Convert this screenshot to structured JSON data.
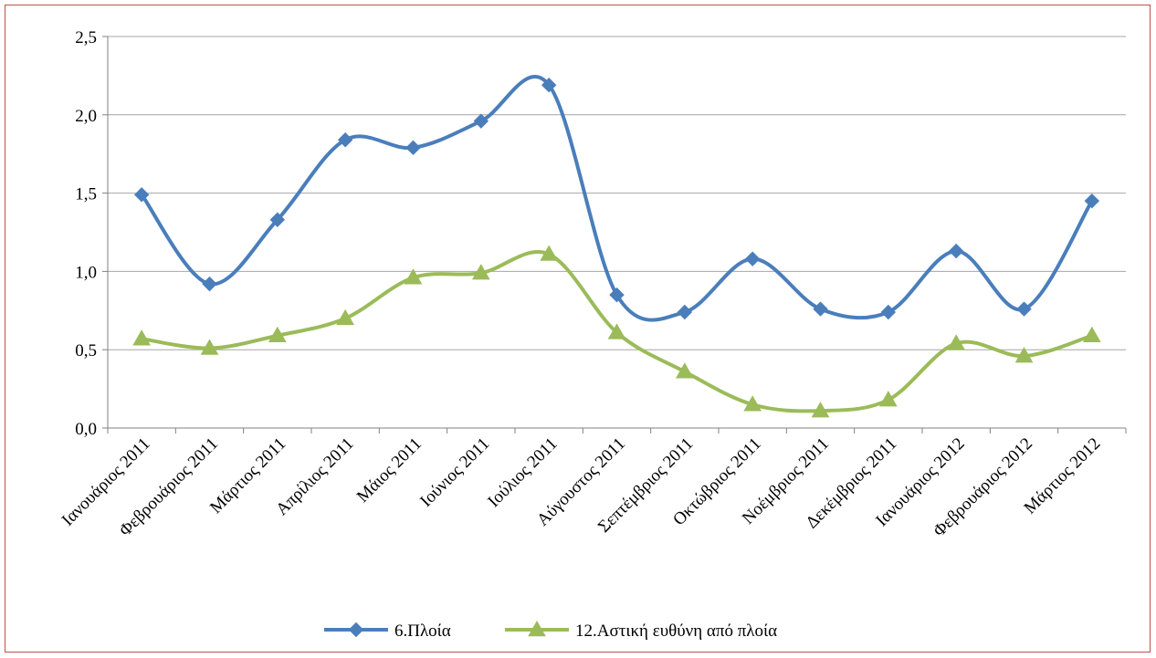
{
  "chart_data": {
    "type": "line",
    "title": "",
    "xlabel": "",
    "ylabel": "",
    "categories": [
      "Ιανουάριος 2011",
      "Φεβρουάριος 2011",
      "Μάρτιος 2011",
      "Απρίλιος 2011",
      "Μάιος 2011",
      "Ιούνιος 2011",
      "Ιούλιος 2011",
      "Αύγουστος 2011",
      "Σεπτέμβριος 2011",
      "Οκτώβριος 2011",
      "Νοέμβριος 2011",
      "Δεκέμβριος 2011",
      "Ιανουάριος 2012",
      "Φεβρουάριος 2012",
      "Μάρτιος 2012"
    ],
    "ylim": [
      0,
      2.5
    ],
    "yticks": [
      "0,0",
      "0,5",
      "1,0",
      "1,5",
      "2,0",
      "2,5"
    ],
    "grid": "horizontal",
    "legend_position": "bottom",
    "smooth": true,
    "series": [
      {
        "name": "6.Πλοία",
        "color": "#4a7ebb",
        "marker": "diamond",
        "values": [
          1.49,
          0.92,
          1.33,
          1.84,
          1.79,
          1.96,
          2.19,
          0.85,
          0.74,
          1.08,
          0.76,
          0.74,
          1.13,
          0.76,
          1.45
        ]
      },
      {
        "name": "12.Αστική ευθύνη από πλοία",
        "color": "#9bbb59",
        "marker": "triangle",
        "values": [
          0.57,
          0.51,
          0.59,
          0.7,
          0.96,
          0.99,
          1.11,
          0.61,
          0.36,
          0.15,
          0.11,
          0.18,
          0.54,
          0.46,
          0.59
        ]
      }
    ]
  }
}
